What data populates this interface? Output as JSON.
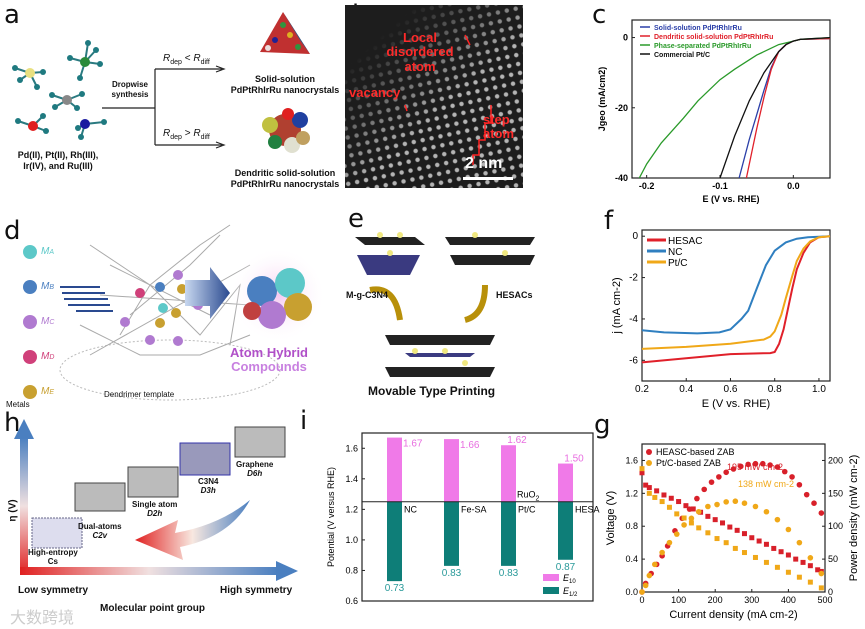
{
  "panel_labels": {
    "a": "a",
    "b": "b",
    "c": "c",
    "d": "d",
    "e": "e",
    "f": "f",
    "g": "g",
    "h": "h",
    "i": "i"
  },
  "panel_a": {
    "precursors": "Pd(II), Pt(II), Rh(III), Ir(IV), and Ru(III)",
    "process": "Dropwise synthesis",
    "cond_top": {
      "r": "R",
      "sub1": "dep",
      "op": " < ",
      "sub2": "diff"
    },
    "cond_bottom": {
      "r": "R",
      "sub1": "dep",
      "op": " > ",
      "sub2": "diff"
    },
    "product_top": [
      "Solid-solution",
      "PdPtRhIrRu nanocrystals"
    ],
    "product_bottom": [
      "Dendritic solid-solution",
      "PdPtRhIrRu nanocrystals"
    ]
  },
  "panel_b": {
    "label_disordered": "Local disordered atom",
    "label_vacancy": "vacancy",
    "label_step": "step atom",
    "scale_bar": "2 nm"
  },
  "panel_d": {
    "metals": [
      "MA",
      "MB",
      "MC",
      "MD",
      "ME"
    ],
    "metal_subs": [
      "A",
      "B",
      "C",
      "D",
      "E"
    ],
    "metals_label": "Metals",
    "template_label": "Dendrimer template",
    "product": [
      "Atom Hybrid",
      "Compounds"
    ],
    "metal_colors": [
      "#5cc8c8",
      "#4a7fc0",
      "#b07ad0",
      "#d0407a",
      "#c8a030"
    ]
  },
  "panel_e": {
    "left_label": "M-g-C3N4",
    "right_label": "HESACs",
    "caption": "Movable Type Printing"
  },
  "panel_h": {
    "y_axis": "η (V)",
    "x_left": "Low symmetry",
    "x_right": "High symmetry",
    "x_axis": "Molecular point group",
    "structures": [
      {
        "name": "High-entropy",
        "group": "Cs"
      },
      {
        "name": "Dual-atoms",
        "group": "C2v"
      },
      {
        "name": "Single atom",
        "group": "D2h"
      },
      {
        "name": "C3N4",
        "group": "D3h"
      },
      {
        "name": "Graphene",
        "group": "D6h"
      }
    ]
  },
  "watermark": "大数跨境",
  "chart_data": [
    {
      "id": "c",
      "type": "line",
      "xlabel": "E (V vs. RHE)",
      "ylabel": "Jgeo (mA/cm2)",
      "xlim": [
        -0.22,
        0.05
      ],
      "ylim": [
        -40,
        5
      ],
      "xticks": [
        -0.2,
        -0.1,
        0.0
      ],
      "xtick_labels": [
        "-0.2",
        "-0.1",
        "0.0"
      ],
      "yticks": [
        0,
        -20,
        -40
      ],
      "ytick_labels": [
        "0",
        "-20",
        "-40"
      ],
      "legend": "top-left",
      "series": [
        {
          "name": "Solid-solution PdPtRhIrRu",
          "color": "#2b3fa8",
          "x": [
            0.05,
            0.01,
            0.0,
            -0.01,
            -0.02,
            -0.03,
            -0.04,
            -0.05,
            -0.06,
            -0.074
          ],
          "y": [
            -0.3,
            -0.5,
            -1.0,
            -2.0,
            -4.0,
            -8.5,
            -15,
            -22,
            -29,
            -40
          ]
        },
        {
          "name": "Dendritic solid-solution PdPtRhIrRu",
          "color": "#e0202a",
          "x": [
            0.05,
            0.01,
            0.0,
            -0.01,
            -0.02,
            -0.03,
            -0.04,
            -0.05,
            -0.055,
            -0.064
          ],
          "y": [
            -0.3,
            -0.5,
            -1.0,
            -2.0,
            -4.0,
            -9,
            -17,
            -26,
            -31,
            -40
          ]
        },
        {
          "name": "Phase-separated PdPtRhIrRu",
          "color": "#2a9a2a",
          "x": [
            0.05,
            0.01,
            0.0,
            -0.02,
            -0.05,
            -0.08,
            -0.1,
            -0.13,
            -0.15,
            -0.18,
            -0.2,
            -0.21
          ],
          "y": [
            0,
            -0.5,
            -1.0,
            -2.0,
            -5.0,
            -9,
            -12,
            -18,
            -23,
            -30,
            -36,
            -40
          ]
        },
        {
          "name": "Commercial Pt/C",
          "color": "#111111",
          "x": [
            0.05,
            0.01,
            0.0,
            -0.01,
            -0.02,
            -0.04,
            -0.06,
            -0.08,
            -0.1
          ],
          "y": [
            0,
            -0.5,
            -1.0,
            -2.0,
            -4.0,
            -10,
            -18,
            -28,
            -40
          ]
        }
      ]
    },
    {
      "id": "f",
      "type": "line",
      "xlabel": "E (V vs. RHE)",
      "ylabel": "j (mA cm-2)",
      "xlim": [
        0.2,
        1.05
      ],
      "ylim": [
        -7,
        0.3
      ],
      "xticks": [
        0.2,
        0.4,
        0.6,
        0.8,
        1.0
      ],
      "xtick_labels": [
        "0.2",
        "0.4",
        "0.6",
        "0.8",
        "1.0"
      ],
      "yticks": [
        0,
        -2,
        -4,
        -6
      ],
      "ytick_labels": [
        "0",
        "-2",
        "-4",
        "-6"
      ],
      "legend": "top-left",
      "series": [
        {
          "name": "HESAC",
          "color": "#e0202a",
          "x": [
            0.2,
            0.4,
            0.6,
            0.78,
            0.8,
            0.82,
            0.84,
            0.86,
            0.88,
            0.9,
            0.93,
            0.96,
            1.0,
            1.05
          ],
          "y": [
            -6.1,
            -5.9,
            -5.7,
            -5.65,
            -5.6,
            -5.2,
            -4.5,
            -3.5,
            -2.5,
            -1.6,
            -0.8,
            -0.3,
            -0.05,
            0
          ]
        },
        {
          "name": "NC",
          "color": "#2f7fc0",
          "x": [
            0.2,
            0.3,
            0.45,
            0.55,
            0.6,
            0.65,
            0.68,
            0.72,
            0.76,
            0.8,
            0.85,
            0.9,
            0.95,
            1.05
          ],
          "y": [
            -4.55,
            -4.65,
            -4.7,
            -4.65,
            -4.5,
            -4.0,
            -3.6,
            -2.5,
            -1.4,
            -0.7,
            -0.3,
            -0.12,
            -0.05,
            0
          ]
        },
        {
          "name": "Pt/C",
          "color": "#f0a818",
          "x": [
            0.2,
            0.4,
            0.6,
            0.75,
            0.78,
            0.8,
            0.83,
            0.85,
            0.88,
            0.9,
            0.93,
            0.96,
            1.0,
            1.05
          ],
          "y": [
            -5.45,
            -5.35,
            -5.2,
            -5.0,
            -4.85,
            -4.6,
            -3.8,
            -3.0,
            -1.9,
            -1.2,
            -0.6,
            -0.25,
            -0.05,
            0
          ]
        }
      ]
    },
    {
      "id": "i",
      "type": "bar",
      "ylabel": "Potential (V versus RHE)",
      "ylim": [
        0.6,
        1.7
      ],
      "baseline": 1.25,
      "yticks": [
        0.6,
        0.8,
        1.0,
        1.2,
        1.4,
        1.6
      ],
      "ytick_labels": [
        "0.6",
        "0.8",
        "1.0",
        "1.2",
        "1.4",
        "1.6"
      ],
      "categories": [
        "NC",
        "Fe-SA",
        "Pt/C",
        "HESA"
      ],
      "annotation": {
        "text": "RuO",
        "sub": "2",
        "category": "Pt/C"
      },
      "legend": "bottom-right",
      "series": [
        {
          "name": "E10",
          "name_main": "E",
          "name_sub": "10",
          "color": "#f07ae8",
          "label_color": "#e86ee0",
          "values": [
            1.67,
            1.66,
            1.62,
            1.5
          ],
          "labels": [
            "1.67",
            "1.66",
            "1.62",
            "1.50"
          ]
        },
        {
          "name": "E1/2",
          "name_main": "E",
          "name_sub": "1/2",
          "color": "#0e7e78",
          "label_color": "#2a9a9a",
          "values": [
            0.73,
            0.83,
            0.83,
            0.87
          ],
          "labels": [
            "0.73",
            "0.83",
            "0.83",
            "0.87"
          ]
        }
      ]
    },
    {
      "id": "g",
      "type": "scatter",
      "xlabel": "Current density (mA cm-2)",
      "ylabel": "Voltage (V)",
      "y2label": "Power density (mW cm-2)",
      "xlim": [
        0,
        500
      ],
      "ylim": [
        0,
        1.8
      ],
      "y2lim": [
        0,
        225
      ],
      "xticks": [
        0,
        100,
        200,
        300,
        400,
        500
      ],
      "xtick_labels": [
        "0",
        "100",
        "200",
        "300",
        "400",
        "500"
      ],
      "yticks": [
        0,
        0.4,
        0.8,
        1.2,
        1.6
      ],
      "ytick_labels": [
        "0.0",
        "0.4",
        "0.8",
        "1.2",
        "1.6"
      ],
      "y2ticks": [
        0,
        50,
        100,
        150,
        200
      ],
      "y2tick_labels": [
        "0",
        "50",
        "100",
        "150",
        "200"
      ],
      "legend": "top-left",
      "annotations": [
        {
          "text": "195 mW cm-2",
          "main": "195 mW cm",
          "sup": "-2",
          "color": "#d8202a"
        },
        {
          "text": "138 mW cm-2",
          "main": "138 mW cm",
          "sup": "-2",
          "color": "#f0a818"
        }
      ],
      "series": [
        {
          "name": "HEASC-based ZAB",
          "color": "#d8202a",
          "voltage": {
            "x": [
              0,
              10,
              20,
              40,
              60,
              80,
              100,
              120,
              140,
              160,
              180,
              200,
              220,
              240,
              260,
              280,
              300,
              320,
              340,
              360,
              380,
              400,
              420,
              440,
              460,
              480,
              490
            ],
            "y": [
              1.45,
              1.3,
              1.27,
              1.23,
              1.18,
              1.14,
              1.1,
              1.05,
              1.01,
              0.97,
              0.92,
              0.88,
              0.84,
              0.79,
              0.75,
              0.71,
              0.66,
              0.62,
              0.58,
              0.53,
              0.49,
              0.45,
              0.4,
              0.36,
              0.32,
              0.27,
              0.25
            ]
          },
          "power": {
            "x": [
              0,
              10,
              25,
              40,
              55,
              70,
              90,
              110,
              130,
              150,
              170,
              190,
              210,
              230,
              250,
              270,
              290,
              310,
              330,
              350,
              370,
              390,
              410,
              430,
              450,
              470,
              490
            ],
            "y": [
              0,
              13,
              28,
              42,
              55,
              70,
              93,
              112,
              126,
              142,
              156,
              167,
              175,
              182,
              187,
              191,
              194,
              195,
              195,
              193,
              190,
              183,
              175,
              163,
              148,
              135,
              120
            ]
          }
        },
        {
          "name": "Pt/C-based ZAB",
          "color": "#f0a818",
          "voltage": {
            "x": [
              0,
              20,
              35,
              55,
              75,
              95,
              115,
              135,
              155,
              180,
              205,
              230,
              255,
              280,
              310,
              340,
              370,
              400,
              430,
              460,
              490
            ],
            "y": [
              1.5,
              1.2,
              1.15,
              1.1,
              1.03,
              0.95,
              0.9,
              0.84,
              0.78,
              0.72,
              0.65,
              0.6,
              0.53,
              0.48,
              0.42,
              0.36,
              0.3,
              0.24,
              0.18,
              0.12,
              0.05
            ]
          },
          "power": {
            "x": [
              0,
              10,
              20,
              35,
              55,
              75,
              95,
              115,
              135,
              155,
              180,
              205,
              230,
              255,
              280,
              310,
              340,
              370,
              400,
              430,
              460,
              490
            ],
            "y": [
              0,
              10,
              25,
              42,
              60,
              75,
              88,
              102,
              112,
              122,
              130,
              133,
              137,
              138,
              135,
              130,
              122,
              110,
              95,
              75,
              52,
              28
            ]
          }
        }
      ]
    }
  ]
}
